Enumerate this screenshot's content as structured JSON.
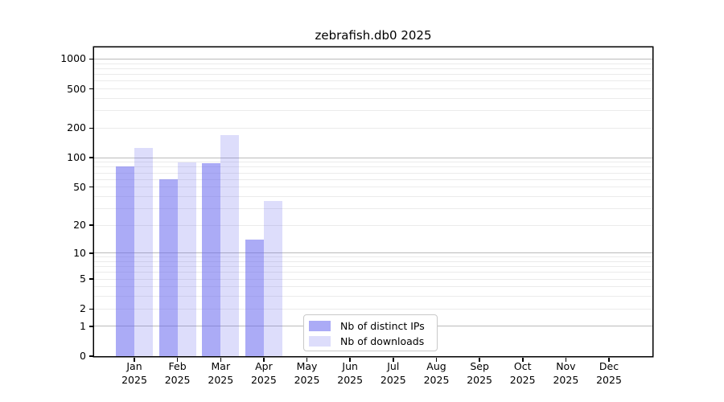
{
  "chart_data": {
    "type": "bar",
    "title": "zebrafish.db0 2025",
    "categories": [
      "Jan",
      "Feb",
      "Mar",
      "Apr",
      "May",
      "Jun",
      "Jul",
      "Aug",
      "Sep",
      "Oct",
      "Nov",
      "Dec"
    ],
    "year_label": "2025",
    "series": [
      {
        "name": "Nb of distinct IPs",
        "values": [
          82,
          60,
          88,
          14,
          0,
          0,
          0,
          0,
          0,
          0,
          0,
          0
        ]
      },
      {
        "name": "Nb of downloads",
        "values": [
          125,
          90,
          170,
          36,
          0,
          0,
          0,
          0,
          0,
          0,
          0,
          0
        ]
      }
    ],
    "yaxis": {
      "scale": "log1p",
      "ticks": [
        0,
        1,
        2,
        5,
        10,
        20,
        50,
        100,
        200,
        500,
        1000
      ],
      "major_gridlines": [
        1,
        10,
        100,
        1000
      ],
      "ylim": [
        0,
        1310
      ]
    },
    "xlabel": "",
    "ylabel": "",
    "grid": "horizontal",
    "legend_position": "lower center"
  },
  "colors": {
    "bar_distinct_ips": "rgba(102,102,238,0.55)",
    "bar_downloads": "rgba(102,102,238,0.22)",
    "grid_major": "#bbbbbb",
    "grid_minor": "#ebebeb",
    "spine": "#000000",
    "legend_border": "#c9c9c9"
  }
}
